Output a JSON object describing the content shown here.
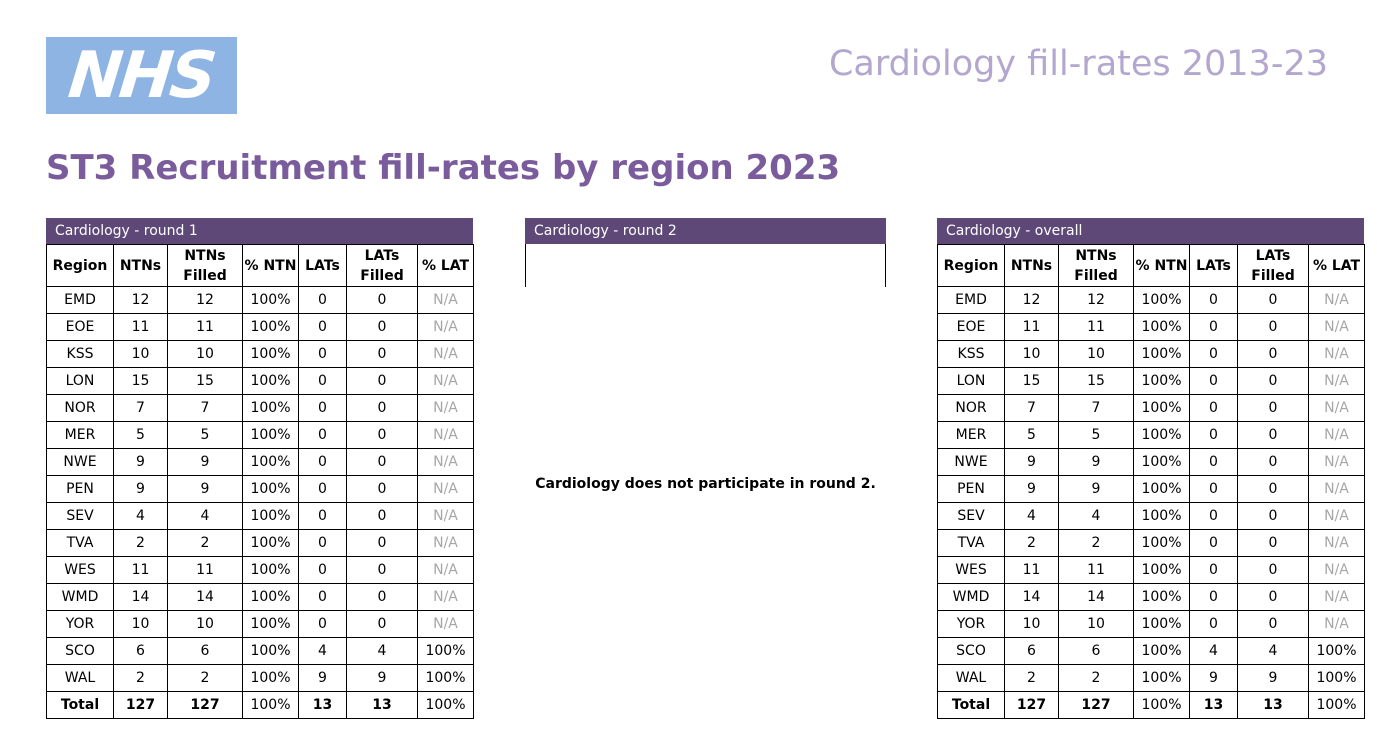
{
  "logo": {
    "text": "NHS"
  },
  "header": {
    "top_title": "Cardiology fill-rates 2013-23",
    "main_title": "ST3 Recruitment fill-rates by region 2023"
  },
  "colors": {
    "logo_bg": "#8db4e2",
    "table_header": "#5e4878",
    "title": "#7a5c9c",
    "top_title": "#b4a7cf",
    "na_text": "#a6a6a6"
  },
  "columns": [
    "Region",
    "NTNs",
    "NTNs Filled",
    "% NTN",
    "LATs",
    "LATs Filled",
    "% LAT"
  ],
  "round1": {
    "title": "Cardiology - round 1",
    "rows": [
      [
        "EMD",
        "12",
        "12",
        "100%",
        "0",
        "0",
        "N/A"
      ],
      [
        "EOE",
        "11",
        "11",
        "100%",
        "0",
        "0",
        "N/A"
      ],
      [
        "KSS",
        "10",
        "10",
        "100%",
        "0",
        "0",
        "N/A"
      ],
      [
        "LON",
        "15",
        "15",
        "100%",
        "0",
        "0",
        "N/A"
      ],
      [
        "NOR",
        "7",
        "7",
        "100%",
        "0",
        "0",
        "N/A"
      ],
      [
        "MER",
        "5",
        "5",
        "100%",
        "0",
        "0",
        "N/A"
      ],
      [
        "NWE",
        "9",
        "9",
        "100%",
        "0",
        "0",
        "N/A"
      ],
      [
        "PEN",
        "9",
        "9",
        "100%",
        "0",
        "0",
        "N/A"
      ],
      [
        "SEV",
        "4",
        "4",
        "100%",
        "0",
        "0",
        "N/A"
      ],
      [
        "TVA",
        "2",
        "2",
        "100%",
        "0",
        "0",
        "N/A"
      ],
      [
        "WES",
        "11",
        "11",
        "100%",
        "0",
        "0",
        "N/A"
      ],
      [
        "WMD",
        "14",
        "14",
        "100%",
        "0",
        "0",
        "N/A"
      ],
      [
        "YOR",
        "10",
        "10",
        "100%",
        "0",
        "0",
        "N/A"
      ],
      [
        "SCO",
        "6",
        "6",
        "100%",
        "4",
        "4",
        "100%"
      ],
      [
        "WAL",
        "2",
        "2",
        "100%",
        "9",
        "9",
        "100%"
      ]
    ],
    "total": [
      "Total",
      "127",
      "127",
      "100%",
      "13",
      "13",
      "100%"
    ]
  },
  "round2": {
    "title": "Cardiology - round 2",
    "message": "Cardiology does not participate in round 2."
  },
  "overall": {
    "title": "Cardiology - overall",
    "rows": [
      [
        "EMD",
        "12",
        "12",
        "100%",
        "0",
        "0",
        "N/A"
      ],
      [
        "EOE",
        "11",
        "11",
        "100%",
        "0",
        "0",
        "N/A"
      ],
      [
        "KSS",
        "10",
        "10",
        "100%",
        "0",
        "0",
        "N/A"
      ],
      [
        "LON",
        "15",
        "15",
        "100%",
        "0",
        "0",
        "N/A"
      ],
      [
        "NOR",
        "7",
        "7",
        "100%",
        "0",
        "0",
        "N/A"
      ],
      [
        "MER",
        "5",
        "5",
        "100%",
        "0",
        "0",
        "N/A"
      ],
      [
        "NWE",
        "9",
        "9",
        "100%",
        "0",
        "0",
        "N/A"
      ],
      [
        "PEN",
        "9",
        "9",
        "100%",
        "0",
        "0",
        "N/A"
      ],
      [
        "SEV",
        "4",
        "4",
        "100%",
        "0",
        "0",
        "N/A"
      ],
      [
        "TVA",
        "2",
        "2",
        "100%",
        "0",
        "0",
        "N/A"
      ],
      [
        "WES",
        "11",
        "11",
        "100%",
        "0",
        "0",
        "N/A"
      ],
      [
        "WMD",
        "14",
        "14",
        "100%",
        "0",
        "0",
        "N/A"
      ],
      [
        "YOR",
        "10",
        "10",
        "100%",
        "0",
        "0",
        "N/A"
      ],
      [
        "SCO",
        "6",
        "6",
        "100%",
        "4",
        "4",
        "100%"
      ],
      [
        "WAL",
        "2",
        "2",
        "100%",
        "9",
        "9",
        "100%"
      ]
    ],
    "total": [
      "Total",
      "127",
      "127",
      "100%",
      "13",
      "13",
      "100%"
    ]
  }
}
